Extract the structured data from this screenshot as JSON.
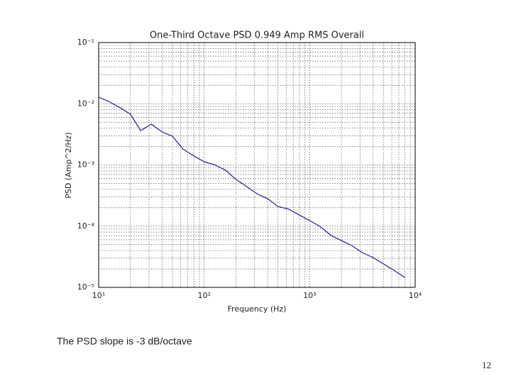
{
  "chart_data": {
    "type": "line",
    "title": "One-Third Octave PSD  0.949 Amp RMS Overall",
    "xlabel": "Frequency (Hz)",
    "ylabel": "PSD (Amp^2/Hz)",
    "x": [
      10,
      12.5,
      16,
      20,
      25,
      31.5,
      40,
      50,
      63,
      80,
      100,
      125,
      160,
      200,
      250,
      315,
      400,
      500,
      630,
      800,
      1000,
      1250,
      1600,
      2000,
      2500,
      3150,
      4000,
      5000,
      6300,
      8000
    ],
    "series": [
      {
        "color": "#1f1f8f",
        "values": [
          0.0128,
          0.0109,
          0.00857,
          0.00675,
          0.00365,
          0.00464,
          0.00346,
          0.00295,
          0.00182,
          0.0014,
          0.00113,
          0.00101,
          0.00082,
          0.00058,
          0.00045,
          0.00034,
          0.00028,
          0.00021,
          0.00019,
          0.000152,
          0.000123,
          9.93e-05,
          7.02e-05,
          5.82e-05,
          4.83e-05,
          3.7e-05,
          3.07e-05,
          2.42e-05,
          1.9e-05,
          1.45e-05
        ]
      }
    ],
    "xlog": true,
    "ylog": true,
    "grid": true,
    "xlim": [
      10,
      10000
    ],
    "xticks": [
      {
        "value": 10,
        "label": "10¹"
      },
      {
        "value": 100,
        "label": "10²"
      },
      {
        "value": 1000,
        "label": "10³"
      },
      {
        "value": 10000,
        "label": "10⁴"
      }
    ],
    "ylim": [
      1e-05,
      0.1
    ],
    "yticks": [
      {
        "value": 1e-05,
        "label": "10⁻⁵"
      },
      {
        "value": 0.0001,
        "label": "10⁻⁴"
      },
      {
        "value": 0.001,
        "label": "10⁻³"
      },
      {
        "value": 0.01,
        "label": "10⁻²"
      },
      {
        "value": 0.1,
        "label": "10⁻¹"
      }
    ]
  },
  "caption": "The PSD slope is -3 dB/octave",
  "page_number": "12"
}
